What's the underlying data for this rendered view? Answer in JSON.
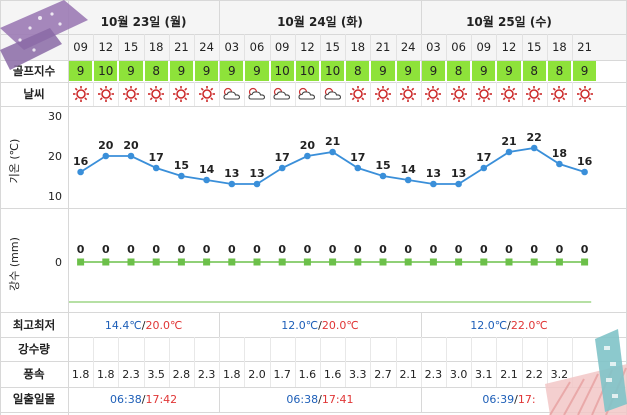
{
  "days": [
    {
      "label": "10월 23일 (월)"
    },
    {
      "label": "10월 24일 (화)"
    },
    {
      "label": "10월 25일 (수)"
    }
  ],
  "hours": [
    "09",
    "12",
    "15",
    "18",
    "21",
    "24",
    "03",
    "06",
    "09",
    "12",
    "15",
    "18",
    "21",
    "24",
    "03",
    "06",
    "09",
    "12",
    "15",
    "18",
    "21"
  ],
  "row_labels": {
    "golf_index": "골프지수",
    "weather": "날씨",
    "temp_axis": "기온 (℃)",
    "rain_axis": "강수 (mm)",
    "minmax": "최고최저",
    "rain_amount": "강수량",
    "wind": "풍속",
    "sunrise_sunset": "일출일몰"
  },
  "golf_index": [
    9,
    10,
    9,
    8,
    9,
    9,
    9,
    9,
    10,
    10,
    10,
    8,
    9,
    9,
    9,
    8,
    9,
    9,
    8,
    8,
    9
  ],
  "weather_icons": [
    "sun-icon",
    "sun-icon",
    "sun-icon",
    "sun-icon",
    "sun-icon",
    "sun-icon",
    "cloudy-icon",
    "cloudy-icon",
    "cloudy-icon",
    "cloudy-icon",
    "cloudy-icon",
    "sun-icon",
    "sun-icon",
    "sun-icon",
    "sun-icon",
    "sun-icon",
    "sun-icon",
    "sun-icon",
    "sun-icon",
    "sun-icon",
    "sun-icon"
  ],
  "chart_data": [
    {
      "type": "line",
      "x": [
        "09",
        "12",
        "15",
        "18",
        "21",
        "24",
        "03",
        "06",
        "09",
        "12",
        "15",
        "18",
        "21",
        "24",
        "03",
        "06",
        "09",
        "12",
        "15",
        "18",
        "21"
      ],
      "values": [
        16,
        20,
        20,
        17,
        15,
        14,
        13,
        13,
        17,
        20,
        21,
        17,
        15,
        14,
        13,
        13,
        17,
        21,
        22,
        18,
        16
      ],
      "ylabel": "기온 (℃)",
      "yticks": [
        10,
        20,
        30
      ],
      "ylim": [
        10,
        30
      ],
      "grid": false,
      "color": "#3a8fd9"
    },
    {
      "type": "line",
      "x": [
        "09",
        "12",
        "15",
        "18",
        "21",
        "24",
        "03",
        "06",
        "09",
        "12",
        "15",
        "18",
        "21",
        "24",
        "03",
        "06",
        "09",
        "12",
        "15",
        "18",
        "21"
      ],
      "values": [
        0,
        0,
        0,
        0,
        0,
        0,
        0,
        0,
        0,
        0,
        0,
        0,
        0,
        0,
        0,
        0,
        0,
        0,
        0,
        0,
        0
      ],
      "ylabel": "강수 (mm)",
      "yticks": [
        0
      ],
      "color": "#6cc04a"
    }
  ],
  "minmax": [
    {
      "low": "14.4℃",
      "sep": "/",
      "high": "20.0℃"
    },
    {
      "low": "12.0℃",
      "sep": "/",
      "high": "20.0℃"
    },
    {
      "low": "12.0℃",
      "sep": "/",
      "high": "22.0℃"
    }
  ],
  "wind": [
    "1.8",
    "1.8",
    "2.3",
    "3.5",
    "2.8",
    "2.3",
    "1.8",
    "2.0",
    "1.7",
    "1.6",
    "1.6",
    "3.3",
    "2.7",
    "2.1",
    "2.3",
    "3.0",
    "3.1",
    "2.1",
    "2.2",
    "3.2",
    ""
  ],
  "sun": [
    {
      "rise": "06:38",
      "sep": "/",
      "set": "17:42"
    },
    {
      "rise": "06:38",
      "sep": "/",
      "set": "17:41"
    },
    {
      "rise": "06:39",
      "sep": "/",
      "set": "17:"
    }
  ],
  "colors": {
    "golf_green": "#8ee23a",
    "temp_line": "#3a8fd9",
    "rain_line": "#6cc04a",
    "low": "#1e5fb8",
    "high": "#e03636",
    "sun": "#cc2a2a"
  }
}
